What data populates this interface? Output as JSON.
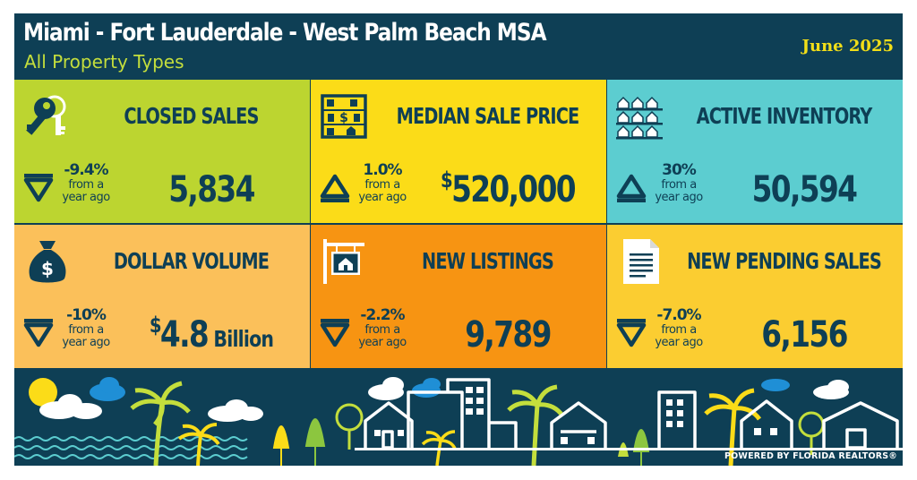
{
  "header": {
    "title": "Miami - Fort Lauderdale - West Palm Beach MSA",
    "subtitle": "All Property Types",
    "date": "June 2025"
  },
  "colors": {
    "frame": "#0e3f55",
    "lime": "#bcd530",
    "yellow": "#fbdc18",
    "teal": "#5ccdd0",
    "peach": "#fbc05a",
    "orange": "#f79412",
    "gold": "#fbcd31",
    "text": "#0e3f55"
  },
  "metrics": [
    {
      "label": "CLOSED SALES",
      "change": "-9.4%",
      "direction": "down",
      "from_text": "from a year ago",
      "value": "5,834",
      "icon": "keys-icon"
    },
    {
      "label": "MEDIAN SALE PRICE",
      "change": "1.0%",
      "direction": "up",
      "from_text": "from a year ago",
      "value_symbol": "$",
      "value": "520,000",
      "icon": "abacus-icon"
    },
    {
      "label": "ACTIVE INVENTORY",
      "change": "30%",
      "direction": "up",
      "from_text": "from a year ago",
      "value": "50,594",
      "icon": "houses-grid-icon"
    },
    {
      "label": "DOLLAR VOLUME",
      "change": "-10%",
      "direction": "down",
      "from_text": "from a year ago",
      "value_symbol": "$",
      "value": "4.8",
      "value_unit": " Billion",
      "icon": "money-bag-icon"
    },
    {
      "label": "NEW LISTINGS",
      "change": "-2.2%",
      "direction": "down",
      "from_text": "from a year ago",
      "value": "9,789",
      "icon": "for-sale-sign-icon"
    },
    {
      "label": "NEW PENDING SALES",
      "change": "-7.0%",
      "direction": "down",
      "from_text": "from a year ago",
      "value": "6,156",
      "icon": "document-icon"
    }
  ],
  "footer": {
    "powered_by": "POWERED BY FLORIDA REALTORS®"
  }
}
